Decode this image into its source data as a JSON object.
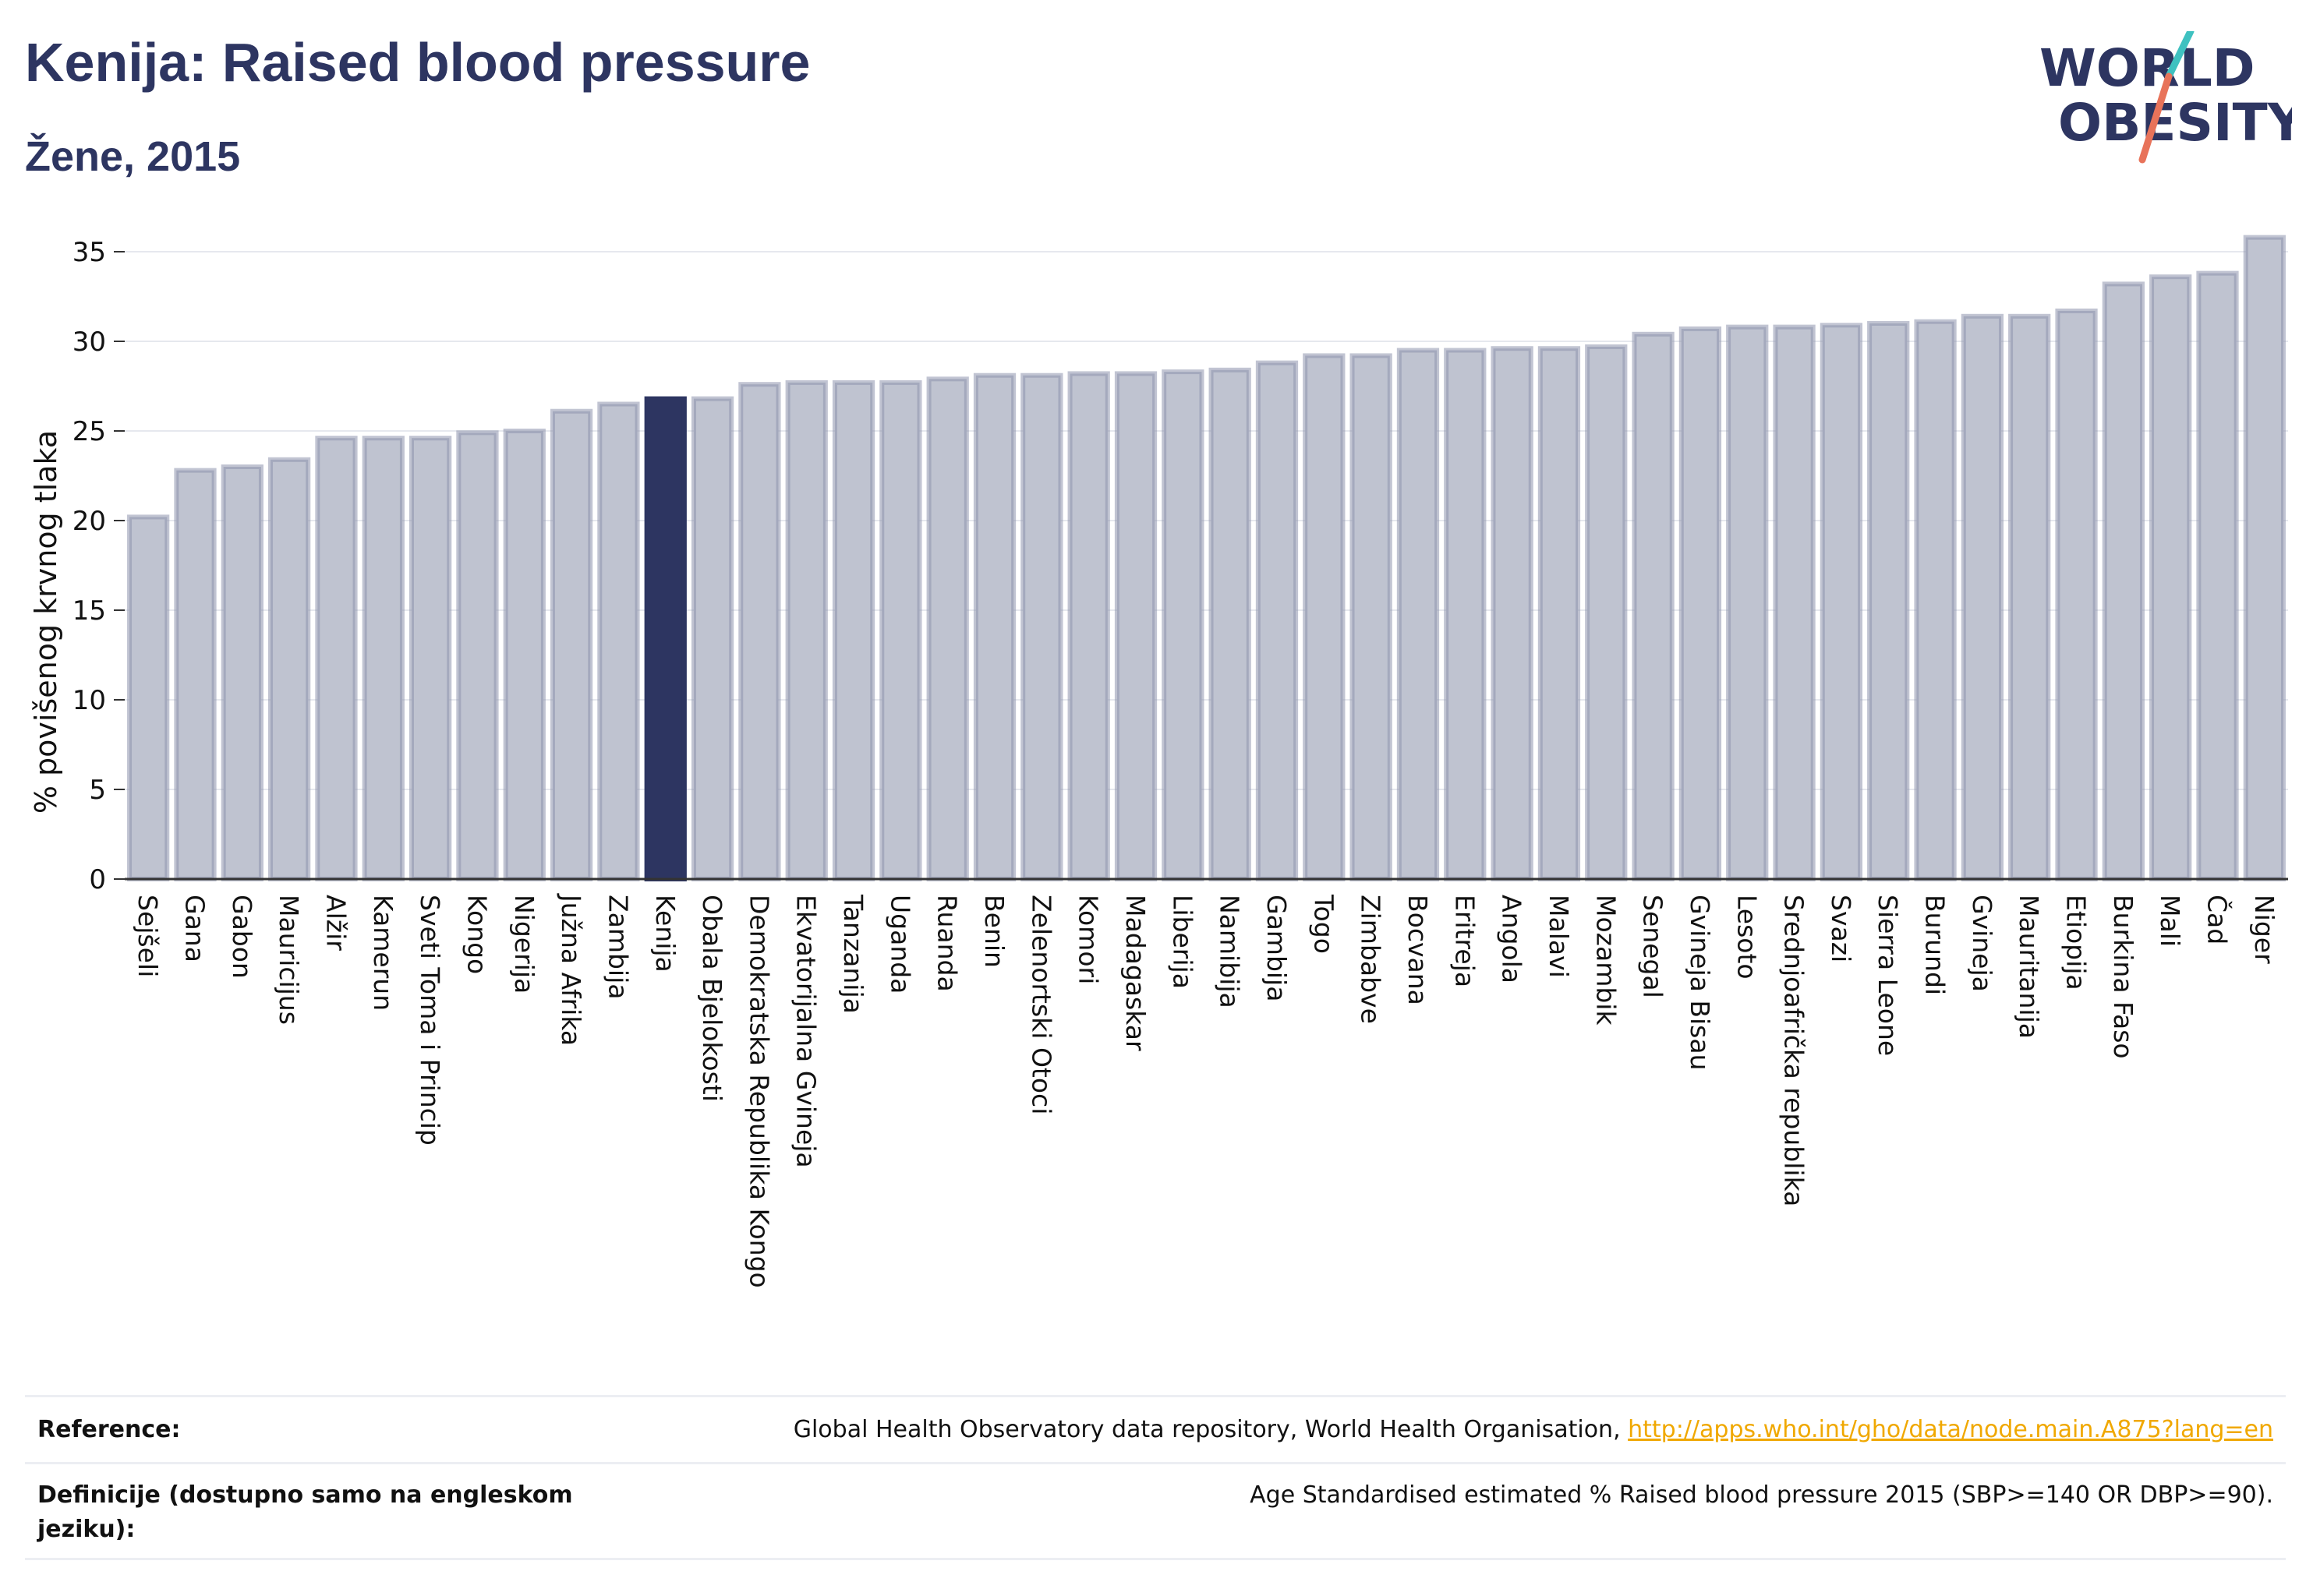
{
  "title": "Kenija: Raised blood pressure",
  "subtitle": "Žene, 2015",
  "logo": {
    "line1": "WORLD",
    "line2": "OBESITY"
  },
  "footer": {
    "reference_label": "Reference:",
    "reference_text": "Global Health Observatory data repository, World Health Organisation, ",
    "reference_link": "http://apps.who.int/gho/data/node.main.A875?lang=en",
    "definition_label": "Definicije (dostupno samo na engleskom jeziku):",
    "definition_text": "Age Standardised estimated % Raised blood pressure 2015 (SBP>=140 OR DBP>=90)."
  },
  "colors": {
    "bar": "#bfc3d0",
    "bar_edge": "#8e94ad",
    "highlight": "#2d3561",
    "title": "#2d3561",
    "link": "#f0a800"
  },
  "chart_data": {
    "type": "bar",
    "ylabel": "% povišenog krvnog tlaka",
    "ylim": [
      0,
      36
    ],
    "yticks": [
      0,
      5,
      10,
      15,
      20,
      25,
      30,
      35
    ],
    "grid": true,
    "highlight": "Kenija",
    "categories": [
      "Sejšeli",
      "Gana",
      "Gabon",
      "Mauricijus",
      "Alžir",
      "Kamerun",
      "Sveti Toma i Princip",
      "Kongo",
      "Nigerija",
      "Južna Afrika",
      "Zambija",
      "Kenija",
      "Obala Bjelokosti",
      "Demokratska Republika Kongo",
      "Ekvatorijalna Gvineja",
      "Tanzanija",
      "Uganda",
      "Ruanda",
      "Benin",
      "Zelenortski Otoci",
      "Komori",
      "Madagaskar",
      "Liberija",
      "Namibija",
      "Gambija",
      "Togo",
      "Zimbabve",
      "Bocvana",
      "Eritreja",
      "Angola",
      "Malavi",
      "Mozambik",
      "Senegal",
      "Gvineja Bisau",
      "Lesoto",
      "Srednjoafrička republika",
      "Svazi",
      "Sierra Leone",
      "Burundi",
      "Gvineja",
      "Mauritanija",
      "Etiopija",
      "Burkina Faso",
      "Mali",
      "Čad",
      "Niger"
    ],
    "values": [
      20.2,
      22.8,
      23.0,
      23.4,
      24.6,
      24.6,
      24.6,
      24.9,
      25.0,
      26.1,
      26.5,
      26.8,
      26.8,
      27.6,
      27.7,
      27.7,
      27.7,
      27.9,
      28.1,
      28.1,
      28.2,
      28.2,
      28.3,
      28.4,
      28.8,
      29.2,
      29.2,
      29.5,
      29.5,
      29.6,
      29.6,
      29.7,
      30.4,
      30.7,
      30.8,
      30.8,
      30.9,
      31.0,
      31.1,
      31.4,
      31.4,
      31.7,
      33.2,
      33.6,
      33.8,
      35.8
    ]
  }
}
